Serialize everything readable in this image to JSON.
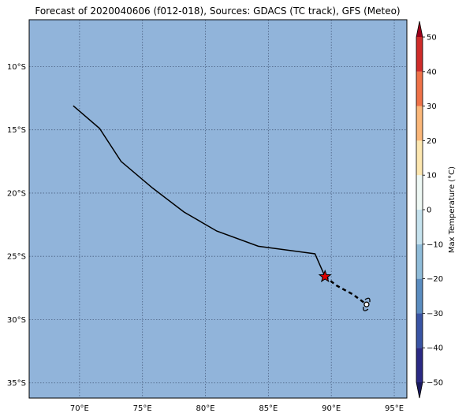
{
  "title": "Forecast of 2020040606 (f012-018), Sources: GDACS (TC track), GFS (Meteo)",
  "map": {
    "lon_range": [
      66,
      96
    ],
    "lat_range": [
      -36.2,
      -6.3
    ],
    "ocean_color": "#91b4da",
    "grid_color": "#4a5f80",
    "lon_ticks": [
      {
        "value": 70,
        "label": "70°E"
      },
      {
        "value": 75,
        "label": "75°E"
      },
      {
        "value": 80,
        "label": "80°E"
      },
      {
        "value": 85,
        "label": "85°E"
      },
      {
        "value": 90,
        "label": "90°E"
      },
      {
        "value": 95,
        "label": "95°E"
      }
    ],
    "lat_ticks": [
      {
        "value": -10,
        "label": "10°S"
      },
      {
        "value": -15,
        "label": "15°S"
      },
      {
        "value": -20,
        "label": "20°S"
      },
      {
        "value": -25,
        "label": "25°S"
      },
      {
        "value": -30,
        "label": "30°S"
      },
      {
        "value": -35,
        "label": "35°S"
      }
    ],
    "past_track": [
      [
        69.5,
        -13.1
      ],
      [
        71.6,
        -14.9
      ],
      [
        73.3,
        -17.5
      ],
      [
        75.8,
        -19.6
      ],
      [
        78.3,
        -21.5
      ],
      [
        80.9,
        -23.0
      ],
      [
        84.2,
        -24.2
      ],
      [
        88.7,
        -24.8
      ],
      [
        89.5,
        -26.6
      ]
    ],
    "forecast_track": [
      [
        89.5,
        -26.6
      ],
      [
        90.4,
        -27.3
      ],
      [
        91.7,
        -28.0
      ],
      [
        92.8,
        -28.8
      ]
    ],
    "current_position": [
      89.5,
      -26.6
    ],
    "current_marker_color": "#e00000",
    "forecast_symbol_position": [
      92.8,
      -28.8
    ]
  },
  "colorbar": {
    "label": "Max Temperature (°C)",
    "min": -50,
    "max": 50,
    "ticks": [
      {
        "value": 50,
        "label": "50"
      },
      {
        "value": 40,
        "label": "40"
      },
      {
        "value": 30,
        "label": "30"
      },
      {
        "value": 20,
        "label": "20"
      },
      {
        "value": 10,
        "label": "10"
      },
      {
        "value": 0,
        "label": "0"
      },
      {
        "value": -10,
        "label": "−10"
      },
      {
        "value": -20,
        "label": "−20"
      },
      {
        "value": -30,
        "label": "−30"
      },
      {
        "value": -40,
        "label": "−40"
      },
      {
        "value": -50,
        "label": "−50"
      }
    ],
    "segment_colors": [
      "#2b2a84",
      "#3954a4",
      "#5b8dc0",
      "#8fbcd9",
      "#c5e2ee",
      "#eef8f4",
      "#fde7b0",
      "#fbb779",
      "#ef7248",
      "#cf2c2a"
    ],
    "extend_low_color": "#1a1a5e",
    "extend_high_color": "#99001a"
  }
}
